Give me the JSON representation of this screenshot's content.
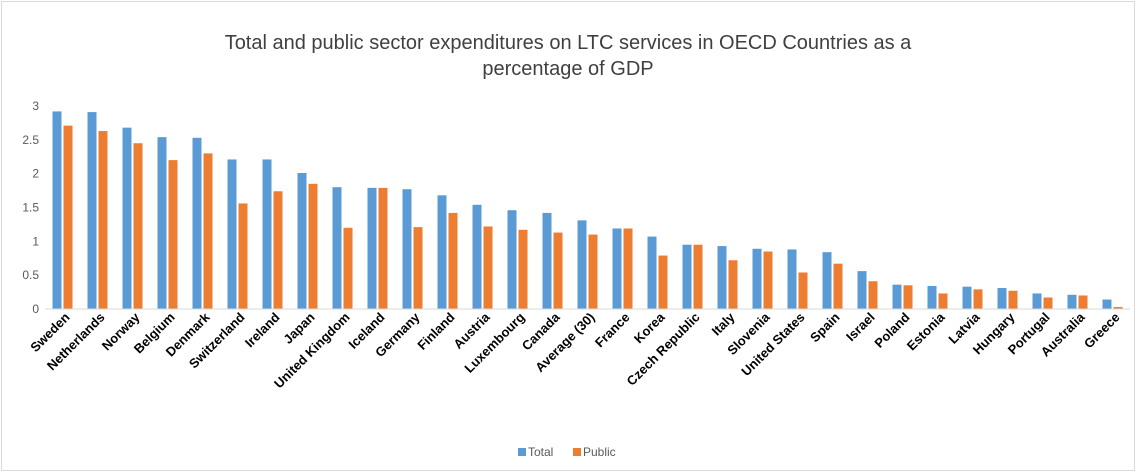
{
  "chart_data": {
    "type": "bar",
    "title": "Total and public sector expenditures on LTC services in OECD Countries as a percentage of GDP",
    "xlabel": "",
    "ylabel": "",
    "ylim": [
      0,
      3
    ],
    "yticks": [
      "0",
      "0.5",
      "1",
      "1.5",
      "2",
      "2.5",
      "3"
    ],
    "grid": false,
    "legend_position": "bottom-center",
    "categories": [
      "Sweden",
      "Netherlands",
      "Norway",
      "Belgium",
      "Denmark",
      "Switzerland",
      "Ireland",
      "Japan",
      "United Kingdom",
      "Iceland",
      "Germany",
      "Finland",
      "Austria",
      "Luxembourg",
      "Canada",
      "Average (30)",
      "France",
      "Korea",
      "Czech Republic",
      "Italy",
      "Slovenia",
      "United States",
      "Spain",
      "Israel",
      "Poland",
      "Estonia",
      "Latvia",
      "Hungary",
      "Portugal",
      "Australia",
      "Greece"
    ],
    "series": [
      {
        "name": "Total",
        "color": "#5b9bd5",
        "values": [
          2.92,
          2.91,
          2.68,
          2.54,
          2.53,
          2.21,
          2.21,
          2.01,
          1.8,
          1.79,
          1.77,
          1.68,
          1.54,
          1.46,
          1.42,
          1.31,
          1.19,
          1.07,
          0.95,
          0.93,
          0.89,
          0.88,
          0.84,
          0.56,
          0.36,
          0.34,
          0.33,
          0.31,
          0.23,
          0.21,
          0.14
        ]
      },
      {
        "name": "Public",
        "color": "#ed7d31",
        "values": [
          2.71,
          2.63,
          2.45,
          2.2,
          2.3,
          1.56,
          1.74,
          1.85,
          1.2,
          1.79,
          1.21,
          1.42,
          1.22,
          1.17,
          1.13,
          1.1,
          1.19,
          0.79,
          0.95,
          0.72,
          0.85,
          0.54,
          0.67,
          0.41,
          0.35,
          0.23,
          0.29,
          0.27,
          0.17,
          0.2,
          0.03
        ]
      }
    ]
  }
}
